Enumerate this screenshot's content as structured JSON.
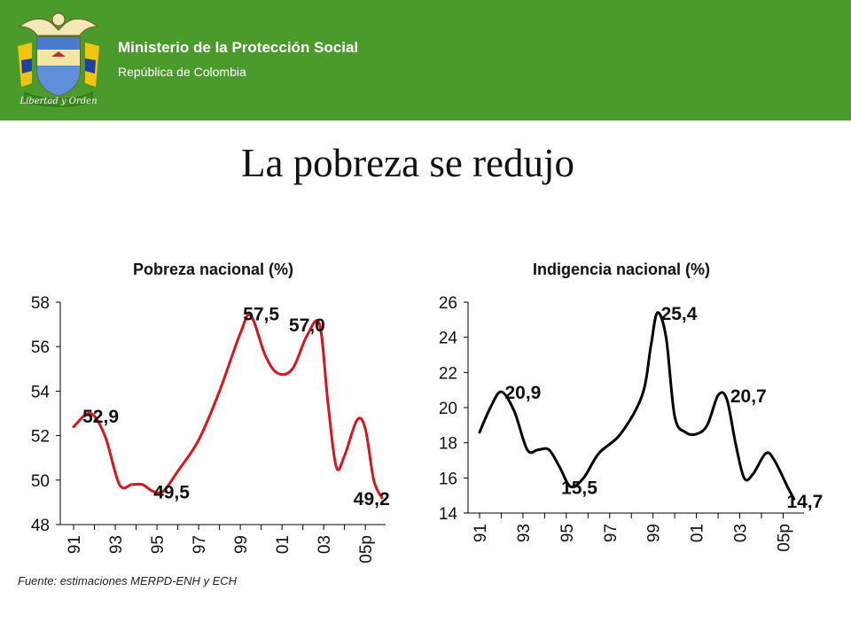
{
  "header": {
    "ministry": "Ministerio de la Protección Social",
    "republic": "República de Colombia",
    "motto": "Libertad y Orden",
    "background": "#4b9a2c"
  },
  "slide_title": "La pobreza se redujo",
  "source": "Fuente: estimaciones MERPD-ENH y ECH",
  "chart_data": [
    {
      "type": "line",
      "title": "Pobreza nacional (%)",
      "color": "#d9141c",
      "categories": [
        "91",
        "93",
        "95",
        "97",
        "99",
        "01",
        "03",
        "05p"
      ],
      "ylim": [
        48,
        58
      ],
      "yticks": [
        "58",
        "56",
        "54",
        "52",
        "50",
        "48"
      ],
      "points": [
        [
          1991,
          52.4
        ],
        [
          1991.8,
          53.0
        ],
        [
          1992.5,
          52.0
        ],
        [
          1993.2,
          49.8
        ],
        [
          1993.8,
          49.8
        ],
        [
          1994.3,
          49.8
        ],
        [
          1994.8,
          49.5
        ],
        [
          1995.3,
          49.5
        ],
        [
          1996,
          50.4
        ],
        [
          1997,
          51.8
        ],
        [
          1998,
          54.0
        ],
        [
          1999,
          56.6
        ],
        [
          1999.5,
          57.4
        ],
        [
          2000.2,
          55.6
        ],
        [
          2000.8,
          54.8
        ],
        [
          2001.5,
          55.0
        ],
        [
          2002.2,
          56.5
        ],
        [
          2002.8,
          57.0
        ],
        [
          2003.2,
          53.5
        ],
        [
          2003.6,
          50.6
        ],
        [
          2004,
          51.1
        ],
        [
          2004.6,
          52.7
        ],
        [
          2005,
          52.3
        ],
        [
          2005.4,
          50.0
        ],
        [
          2005.8,
          49.2
        ]
      ],
      "labels": [
        {
          "text": "52,9",
          "x": 1992.3,
          "y": 52.9
        },
        {
          "text": "49,5",
          "x": 1995.7,
          "y": 49.5
        },
        {
          "text": "57,5",
          "x": 2000.0,
          "y": 57.5
        },
        {
          "text": "57,0",
          "x": 2002.2,
          "y": 57.0
        },
        {
          "text": "49,2",
          "x": 2005.3,
          "y": 49.2
        }
      ]
    },
    {
      "type": "line",
      "title": "Indigencia nacional (%)",
      "color": "#000000",
      "categories": [
        "91",
        "93",
        "95",
        "97",
        "99",
        "01",
        "03",
        "05p"
      ],
      "ylim": [
        14,
        26
      ],
      "yticks": [
        "26",
        "24",
        "22",
        "20",
        "18",
        "16",
        "14"
      ],
      "points": [
        [
          1991,
          18.6
        ],
        [
          1991.5,
          20.0
        ],
        [
          1992,
          20.9
        ],
        [
          1992.6,
          19.8
        ],
        [
          1993.2,
          17.6
        ],
        [
          1993.7,
          17.6
        ],
        [
          1994.2,
          17.6
        ],
        [
          1994.7,
          16.6
        ],
        [
          1995.2,
          15.5
        ],
        [
          1995.8,
          16.0
        ],
        [
          1996.5,
          17.4
        ],
        [
          1997.5,
          18.5
        ],
        [
          1998.5,
          20.7
        ],
        [
          1998.9,
          23.5
        ],
        [
          1999.2,
          25.4
        ],
        [
          1999.6,
          24.0
        ],
        [
          2000,
          19.5
        ],
        [
          2000.5,
          18.6
        ],
        [
          2001,
          18.5
        ],
        [
          2001.5,
          19.0
        ],
        [
          2002,
          20.7
        ],
        [
          2002.4,
          20.5
        ],
        [
          2002.8,
          18.0
        ],
        [
          2003.2,
          16.0
        ],
        [
          2003.6,
          16.2
        ],
        [
          2004.2,
          17.4
        ],
        [
          2004.6,
          17.0
        ],
        [
          2005.2,
          15.5
        ],
        [
          2005.5,
          14.8
        ]
      ],
      "labels": [
        {
          "text": "20,9",
          "x": 1993.0,
          "y": 20.9
        },
        {
          "text": "15,5",
          "x": 1995.6,
          "y": 15.5
        },
        {
          "text": "25,4",
          "x": 2000.2,
          "y": 25.4
        },
        {
          "text": "20,7",
          "x": 2003.4,
          "y": 20.7
        },
        {
          "text": "14,7",
          "x": 2006.0,
          "y": 14.7
        }
      ]
    }
  ]
}
